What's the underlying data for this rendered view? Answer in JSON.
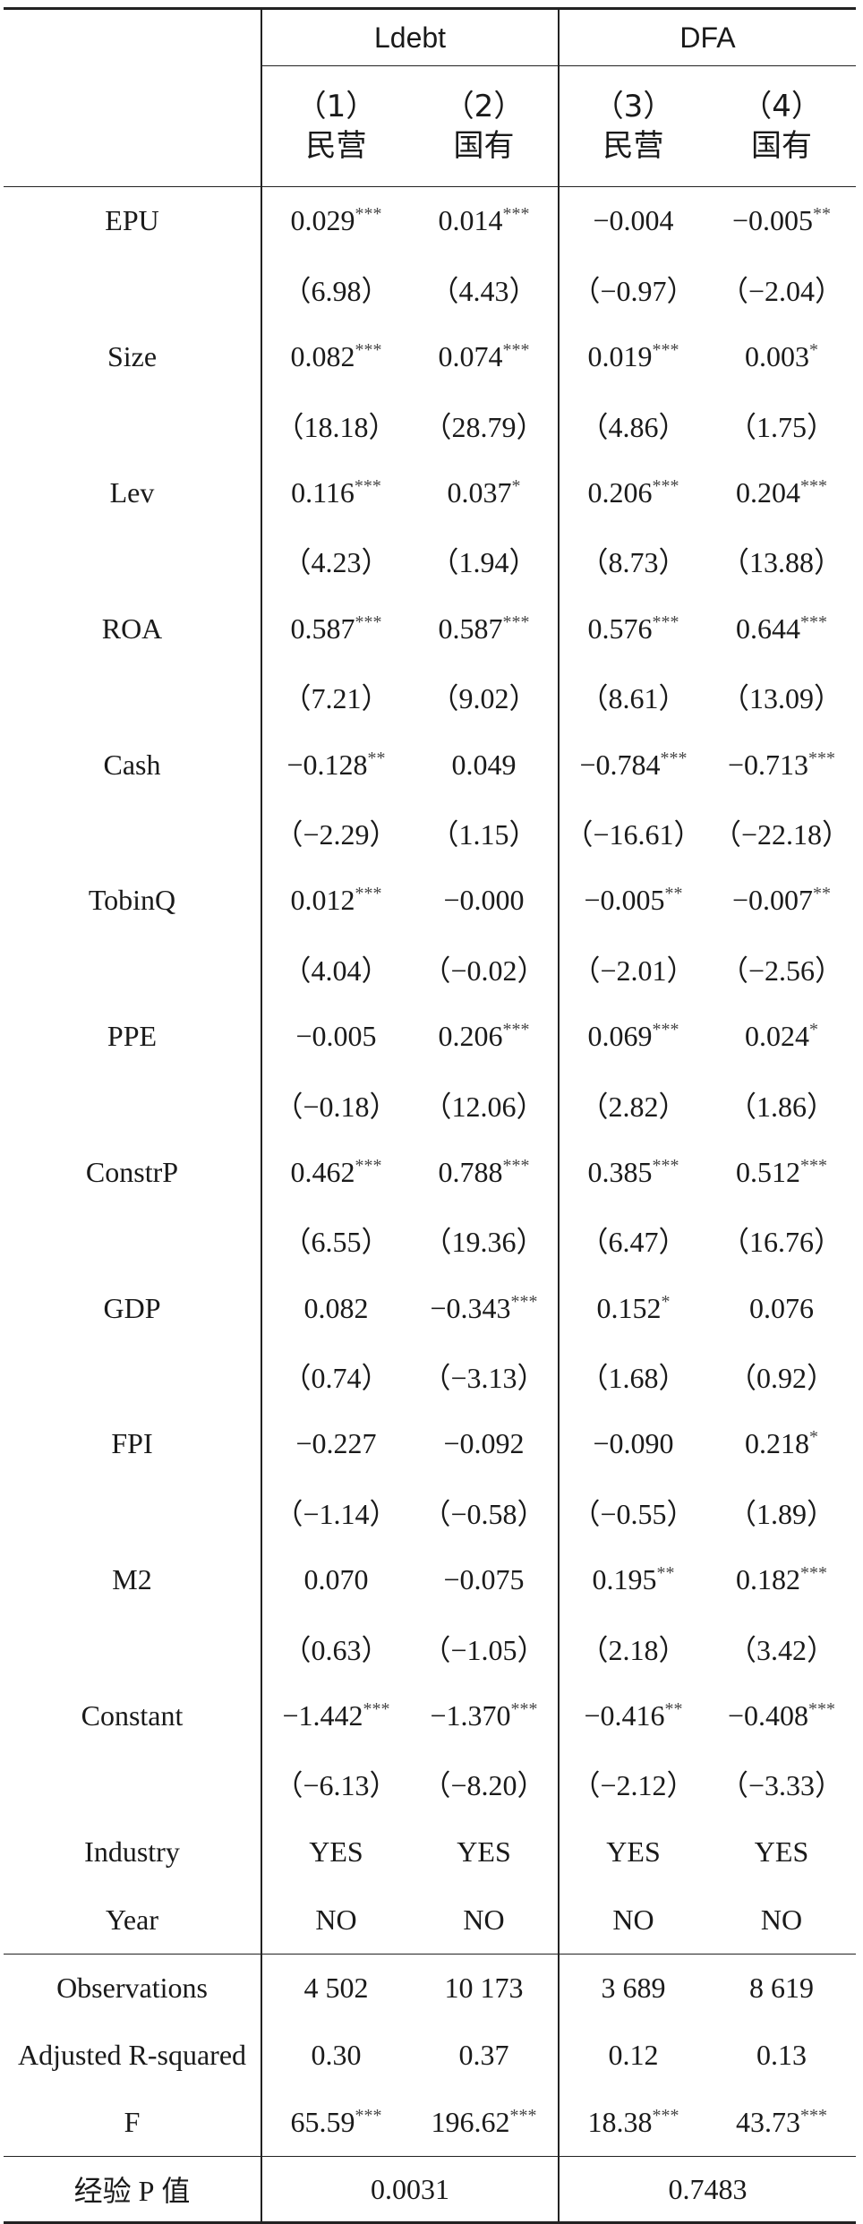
{
  "header": {
    "groups": [
      "Ldebt",
      "DFA"
    ],
    "columns": [
      {
        "num": "（1）",
        "type": "民营"
      },
      {
        "num": "（2）",
        "type": "国有"
      },
      {
        "num": "（3）",
        "type": "民营"
      },
      {
        "num": "（4）",
        "type": "国有"
      }
    ]
  },
  "rows": [
    {
      "label": "EPU",
      "coef": [
        [
          "0.029",
          "***"
        ],
        [
          "0.014",
          "***"
        ],
        [
          "−0.004",
          ""
        ],
        [
          "−0.005",
          "**"
        ]
      ],
      "t": [
        "（6.98）",
        "（4.43）",
        "（−0.97）",
        "（−2.04）"
      ]
    },
    {
      "label": "Size",
      "coef": [
        [
          "0.082",
          "***"
        ],
        [
          "0.074",
          "***"
        ],
        [
          "0.019",
          "***"
        ],
        [
          "0.003",
          "*"
        ]
      ],
      "t": [
        "（18.18）",
        "（28.79）",
        "（4.86）",
        "（1.75）"
      ]
    },
    {
      "label": "Lev",
      "coef": [
        [
          "0.116",
          "***"
        ],
        [
          "0.037",
          "*"
        ],
        [
          "0.206",
          "***"
        ],
        [
          "0.204",
          "***"
        ]
      ],
      "t": [
        "（4.23）",
        "（1.94）",
        "（8.73）",
        "（13.88）"
      ]
    },
    {
      "label": "ROA",
      "coef": [
        [
          "0.587",
          "***"
        ],
        [
          "0.587",
          "***"
        ],
        [
          "0.576",
          "***"
        ],
        [
          "0.644",
          "***"
        ]
      ],
      "t": [
        "（7.21）",
        "（9.02）",
        "（8.61）",
        "（13.09）"
      ]
    },
    {
      "label": "Cash",
      "coef": [
        [
          "−0.128",
          "**"
        ],
        [
          "0.049",
          ""
        ],
        [
          "−0.784",
          "***"
        ],
        [
          "−0.713",
          "***"
        ]
      ],
      "t": [
        "（−2.29）",
        "（1.15）",
        "（−16.61）",
        "（−22.18）"
      ]
    },
    {
      "label": "TobinQ",
      "coef": [
        [
          "0.012",
          "***"
        ],
        [
          "−0.000",
          ""
        ],
        [
          "−0.005",
          "**"
        ],
        [
          "−0.007",
          "**"
        ]
      ],
      "t": [
        "（4.04）",
        "（−0.02）",
        "（−2.01）",
        "（−2.56）"
      ]
    },
    {
      "label": "PPE",
      "coef": [
        [
          "−0.005",
          ""
        ],
        [
          "0.206",
          "***"
        ],
        [
          "0.069",
          "***"
        ],
        [
          "0.024",
          "*"
        ]
      ],
      "t": [
        "（−0.18）",
        "（12.06）",
        "（2.82）",
        "（1.86）"
      ]
    },
    {
      "label": "ConstrP",
      "coef": [
        [
          "0.462",
          "***"
        ],
        [
          "0.788",
          "***"
        ],
        [
          "0.385",
          "***"
        ],
        [
          "0.512",
          "***"
        ]
      ],
      "t": [
        "（6.55）",
        "（19.36）",
        "（6.47）",
        "（16.76）"
      ]
    },
    {
      "label": "GDP",
      "coef": [
        [
          "0.082",
          ""
        ],
        [
          "−0.343",
          "***"
        ],
        [
          "0.152",
          "*"
        ],
        [
          "0.076",
          ""
        ]
      ],
      "t": [
        "（0.74）",
        "（−3.13）",
        "（1.68）",
        "（0.92）"
      ]
    },
    {
      "label": "FPI",
      "coef": [
        [
          "−0.227",
          ""
        ],
        [
          "−0.092",
          ""
        ],
        [
          "−0.090",
          ""
        ],
        [
          "0.218",
          "*"
        ]
      ],
      "t": [
        "（−1.14）",
        "（−0.58）",
        "（−0.55）",
        "（1.89）"
      ]
    },
    {
      "label": "M2",
      "coef": [
        [
          "0.070",
          ""
        ],
        [
          "−0.075",
          ""
        ],
        [
          "0.195",
          "**"
        ],
        [
          "0.182",
          "***"
        ]
      ],
      "t": [
        "（0.63）",
        "（−1.05）",
        "（2.18）",
        "（3.42）"
      ]
    },
    {
      "label": "Constant",
      "coef": [
        [
          "−1.442",
          "***"
        ],
        [
          "−1.370",
          "***"
        ],
        [
          "−0.416",
          "**"
        ],
        [
          "−0.408",
          "***"
        ]
      ],
      "t": [
        "（−6.13）",
        "（−8.20）",
        "（−2.12）",
        "（−3.33）"
      ]
    }
  ],
  "controls": [
    {
      "label": "Industry",
      "values": [
        "YES",
        "YES",
        "YES",
        "YES"
      ]
    },
    {
      "label": "Year",
      "values": [
        "NO",
        "NO",
        "NO",
        "NO"
      ]
    }
  ],
  "stats": [
    {
      "label": "Observations",
      "values": [
        [
          "4 502",
          ""
        ],
        [
          "10 173",
          ""
        ],
        [
          "3 689",
          ""
        ],
        [
          "8 619",
          ""
        ]
      ]
    },
    {
      "label": "Adjusted R-squared",
      "values": [
        [
          "0.30",
          ""
        ],
        [
          "0.37",
          ""
        ],
        [
          "0.12",
          ""
        ],
        [
          "0.13",
          ""
        ]
      ]
    },
    {
      "label": "F",
      "values": [
        [
          "65.59",
          "***"
        ],
        [
          "196.62",
          "***"
        ],
        [
          "18.38",
          "***"
        ],
        [
          "43.73",
          "***"
        ]
      ]
    }
  ],
  "pvalue": {
    "label_cn1": "经验",
    "label_en": "P",
    "label_cn2": "值",
    "values": [
      "0.0031",
      "0.7483"
    ]
  }
}
